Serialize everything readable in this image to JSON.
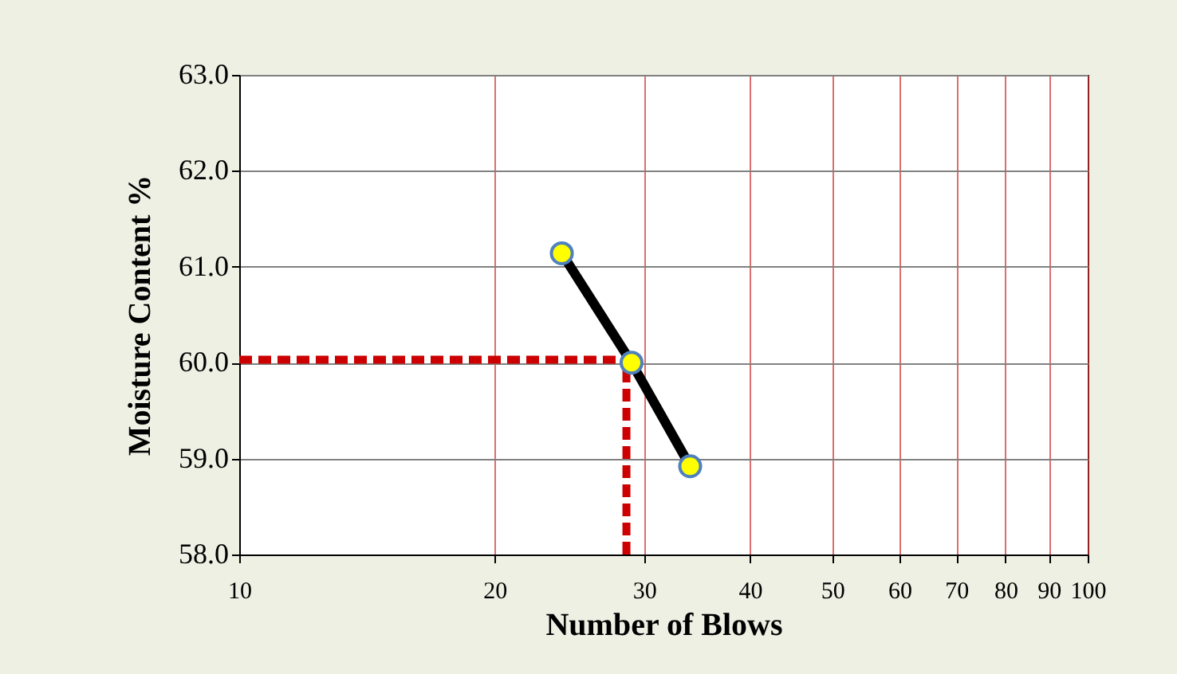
{
  "chart_data": {
    "type": "line",
    "xlabel": "Number of Blows",
    "ylabel": "Moisture Content %",
    "log": "x",
    "xlim": [
      10,
      100
    ],
    "xticks": [
      10,
      20,
      30,
      40,
      50,
      60,
      70,
      80,
      90,
      100
    ],
    "ylim": [
      58,
      63
    ],
    "yticks": [
      {
        "value": 58,
        "label": "58.0"
      },
      {
        "value": 59,
        "label": "59.0"
      },
      {
        "value": 60,
        "label": "60.0"
      },
      {
        "value": 61,
        "label": "61.0"
      },
      {
        "value": 62,
        "label": "62.0"
      },
      {
        "value": 63,
        "label": "63.0"
      }
    ],
    "x": [
      24,
      29,
      34
    ],
    "grid": true,
    "series": [
      {
        "color": "#000000",
        "values": [
          61.14,
          60.0,
          58.92
        ]
      },
      {
        "type": "scatter",
        "color": "#ffff00",
        "marker": "circle",
        "values": [
          61.14,
          60.0,
          58.92
        ]
      }
    ],
    "ref_lines": [
      {
        "axis": "y",
        "value": 60.03,
        "color": "#cc0000",
        "line_style": "dashed"
      },
      {
        "axis": "x",
        "value": 28.6,
        "color": "#cc0000",
        "line_style": "dashed"
      }
    ]
  }
}
